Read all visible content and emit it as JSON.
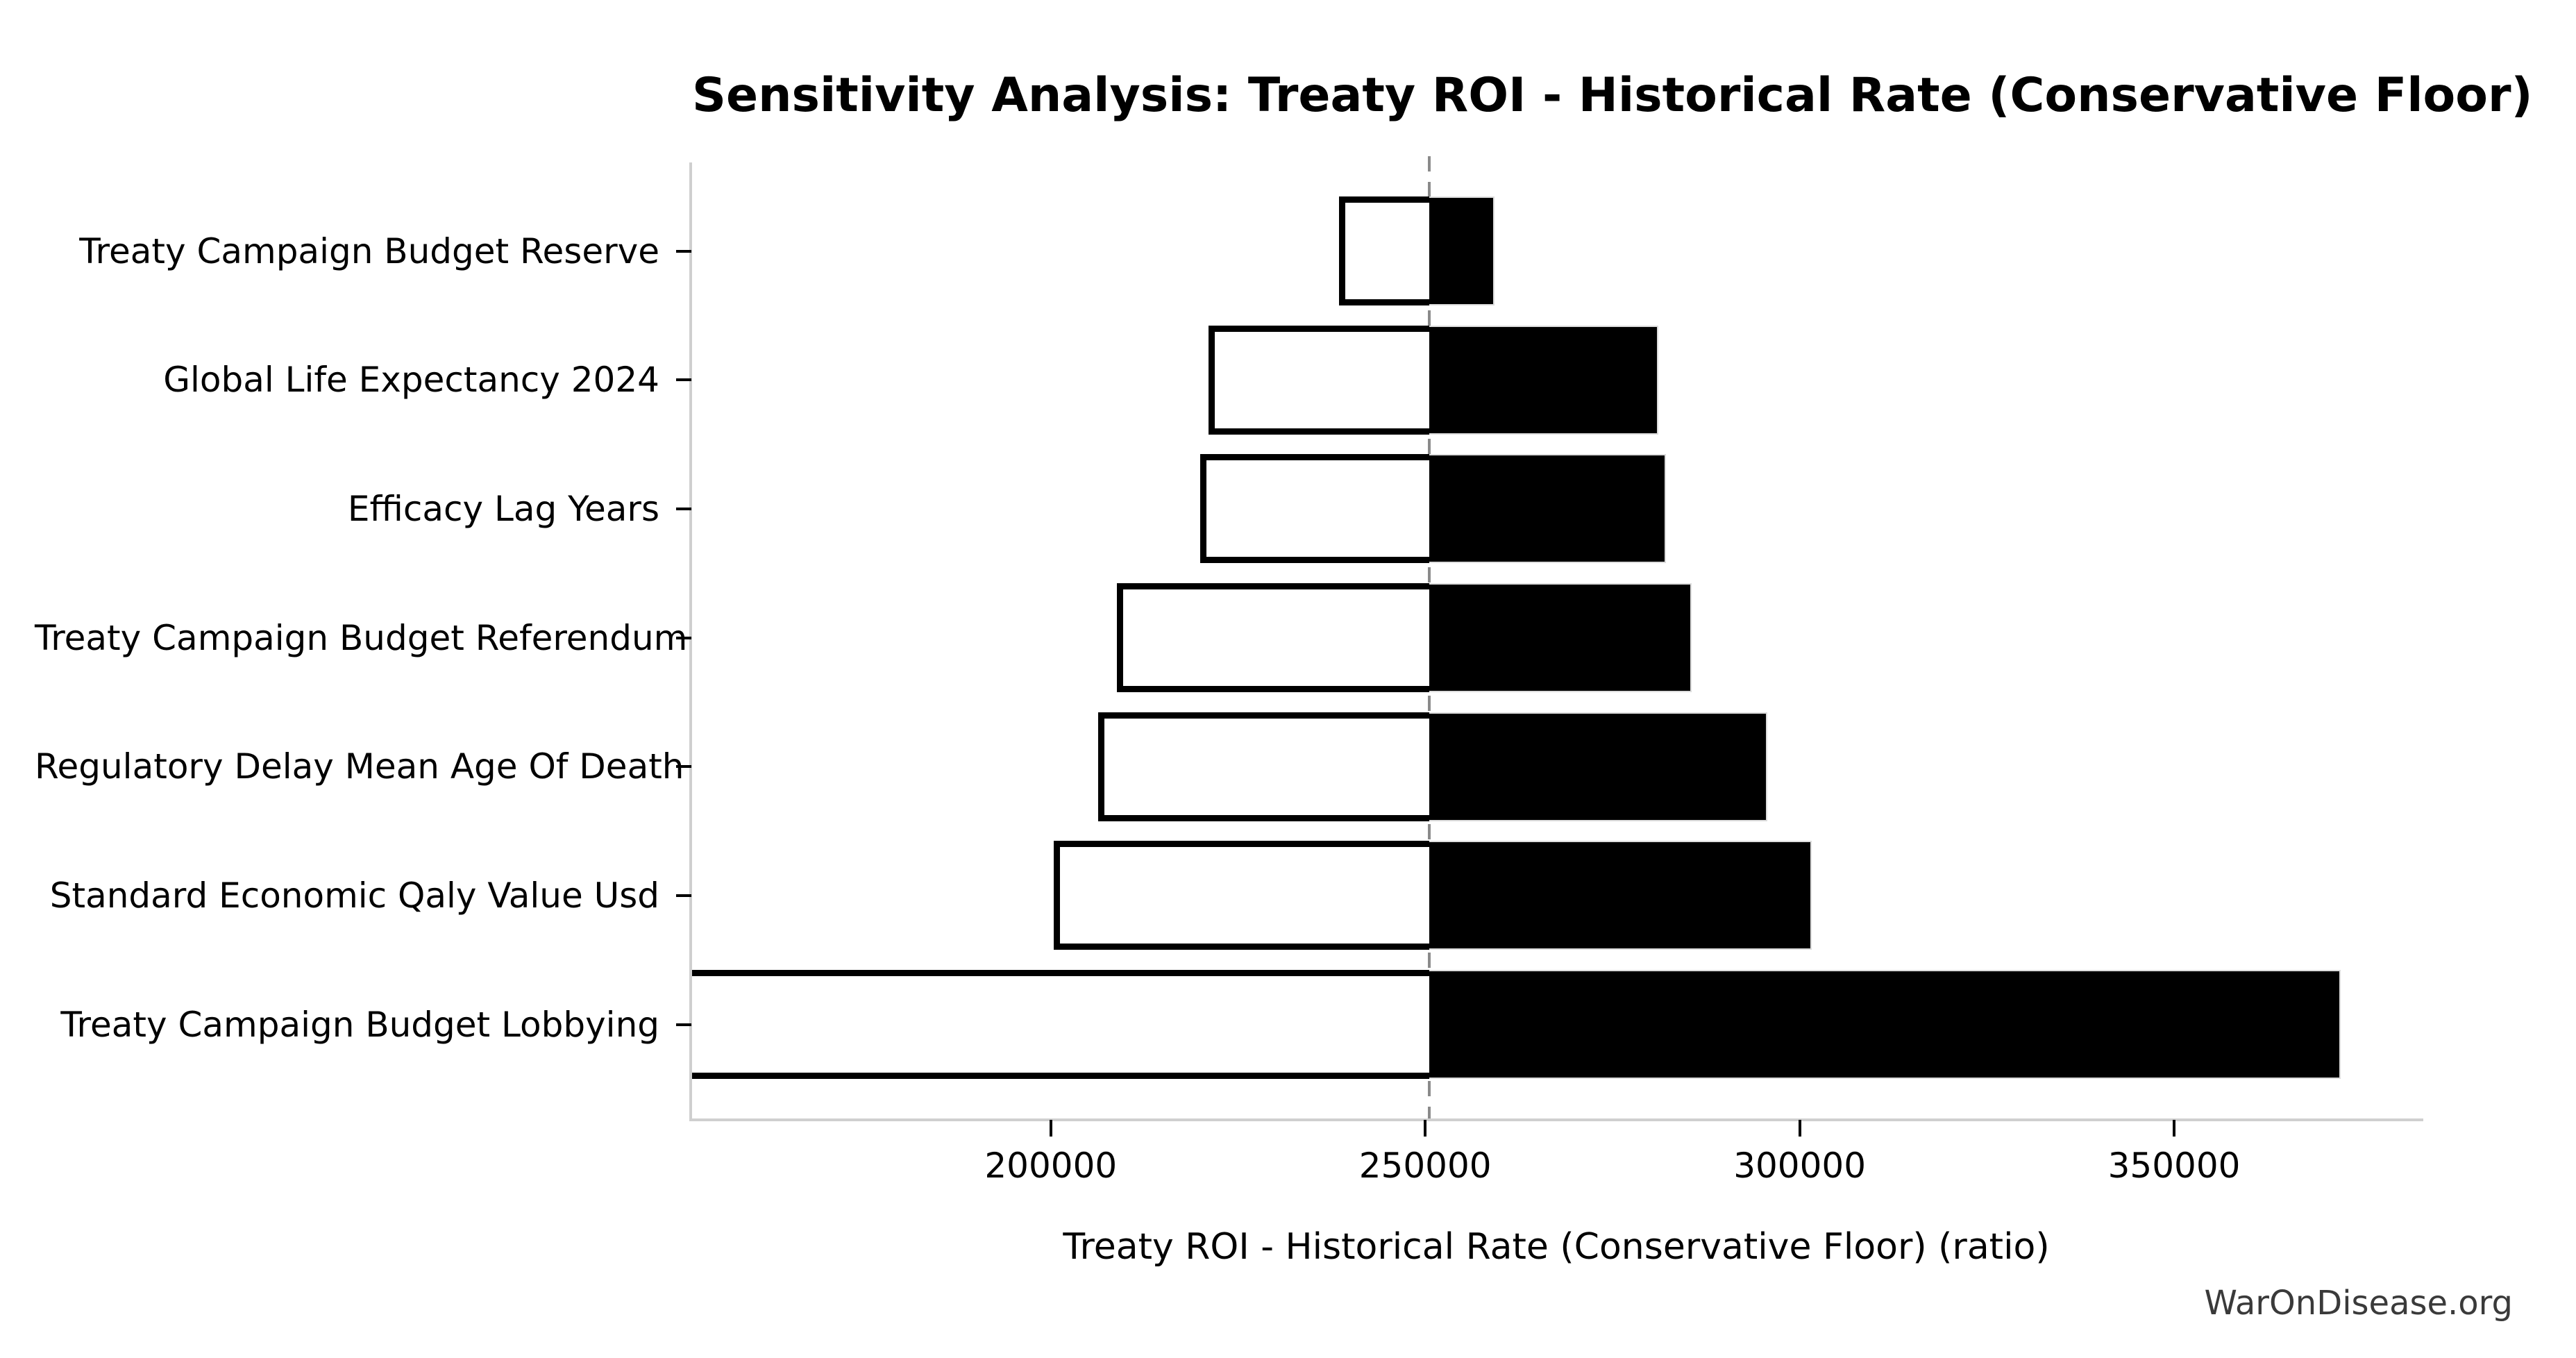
{
  "chart_data": {
    "type": "bar",
    "variant": "tornado-sensitivity",
    "title": "Sensitivity Analysis: Treaty ROI - Historical Rate (Conservative Floor)",
    "xlabel": "Treaty ROI - Historical Rate (Conservative Floor) (ratio)",
    "watermark": "WarOnDisease.org",
    "xlim": [
      152100,
      382900
    ],
    "xticks": [
      200000,
      250000,
      300000,
      350000
    ],
    "xtick_labels": [
      "200000",
      "250000",
      "300000",
      "350000"
    ],
    "baseline": 250500,
    "grid": false,
    "legend": null,
    "categories": [
      "Treaty Campaign Budget Reserve",
      "Global Life Expectancy 2024",
      "Efficacy Lag Years",
      "Treaty Campaign Budget Referendum",
      "Regulatory Delay Mean Age Of Death",
      "Standard Economic Qaly Value Usd",
      "Treaty Campaign Budget Lobbying"
    ],
    "rows": [
      {
        "label": "Treaty Campaign Budget Reserve",
        "low": 238900,
        "high": 259100
      },
      {
        "label": "Global Life Expectancy 2024",
        "low": 221500,
        "high": 280900
      },
      {
        "label": "Efficacy Lag Years",
        "low": 220400,
        "high": 282000
      },
      {
        "label": "Treaty Campaign Budget Referendum",
        "low": 209200,
        "high": 285400
      },
      {
        "label": "Regulatory Delay Mean Age Of Death",
        "low": 206700,
        "high": 295500
      },
      {
        "label": "Standard Economic Qaly Value Usd",
        "low": 200800,
        "high": 301400
      },
      {
        "label": "Treaty Campaign Budget Lobbying",
        "low": 152100,
        "high": 372100
      }
    ],
    "series": [
      {
        "name": "below-baseline",
        "color": "#ffffff",
        "values": [
          238900,
          221500,
          220400,
          209200,
          206700,
          200800,
          152100
        ]
      },
      {
        "name": "above-baseline",
        "color": "#000000",
        "values": [
          259100,
          280900,
          282000,
          285400,
          295500,
          301400,
          372100
        ]
      }
    ],
    "colors": {
      "low_bar_fill": "#ffffff",
      "low_bar_edge": "#000000",
      "high_bar_fill": "#000000",
      "baseline_line": "#8a8a8a",
      "spine": "#cfcfcf",
      "text": "#000000",
      "watermark_text": "#3a3a3a",
      "background": "#ffffff"
    }
  }
}
